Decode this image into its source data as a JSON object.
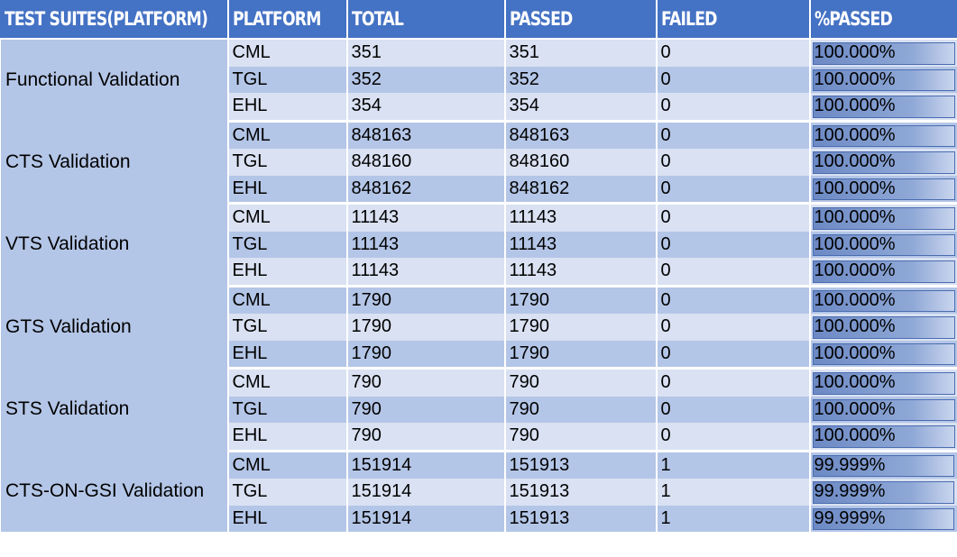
{
  "headers": [
    "TEST SUITES(PLATFORM)",
    "PLATFORM",
    "TOTAL",
    "PASSED",
    "FAILED",
    "%PASSED"
  ],
  "groups": [
    {
      "suite": "Functional Validation",
      "rows": [
        {
          "platform": "CML",
          "total": "351",
          "passed": "351",
          "failed": "0",
          "pct": "100.000%",
          "pct_value": 100
        },
        {
          "platform": "TGL",
          "total": "352",
          "passed": "352",
          "failed": "0",
          "pct": "100.000%",
          "pct_value": 100
        },
        {
          "platform": "EHL",
          "total": "354",
          "passed": "354",
          "failed": "0",
          "pct": "100.000%",
          "pct_value": 100
        }
      ]
    },
    {
      "suite": "CTS Validation",
      "rows": [
        {
          "platform": "CML",
          "total": "848163",
          "passed": "848163",
          "failed": "0",
          "pct": "100.000%",
          "pct_value": 100
        },
        {
          "platform": "TGL",
          "total": "848160",
          "passed": "848160",
          "failed": "0",
          "pct": "100.000%",
          "pct_value": 100
        },
        {
          "platform": "EHL",
          "total": "848162",
          "passed": "848162",
          "failed": "0",
          "pct": "100.000%",
          "pct_value": 100
        }
      ]
    },
    {
      "suite": "VTS Validation",
      "rows": [
        {
          "platform": "CML",
          "total": "11143",
          "passed": "11143",
          "failed": "0",
          "pct": "100.000%",
          "pct_value": 100
        },
        {
          "platform": "TGL",
          "total": "11143",
          "passed": "11143",
          "failed": "0",
          "pct": "100.000%",
          "pct_value": 100
        },
        {
          "platform": "EHL",
          "total": "11143",
          "passed": "11143",
          "failed": "0",
          "pct": "100.000%",
          "pct_value": 100
        }
      ]
    },
    {
      "suite": "GTS Validation",
      "rows": [
        {
          "platform": "CML",
          "total": "1790",
          "passed": "1790",
          "failed": "0",
          "pct": "100.000%",
          "pct_value": 100
        },
        {
          "platform": "TGL",
          "total": "1790",
          "passed": "1790",
          "failed": "0",
          "pct": "100.000%",
          "pct_value": 100
        },
        {
          "platform": "EHL",
          "total": "1790",
          "passed": "1790",
          "failed": "0",
          "pct": "100.000%",
          "pct_value": 100
        }
      ]
    },
    {
      "suite": "STS Validation",
      "rows": [
        {
          "platform": "CML",
          "total": "790",
          "passed": "790",
          "failed": "0",
          "pct": "100.000%",
          "pct_value": 100
        },
        {
          "platform": "TGL",
          "total": "790",
          "passed": "790",
          "failed": "0",
          "pct": "100.000%",
          "pct_value": 100
        },
        {
          "platform": "EHL",
          "total": "790",
          "passed": "790",
          "failed": "0",
          "pct": "100.000%",
          "pct_value": 100
        }
      ]
    },
    {
      "suite": "CTS-ON-GSI Validation",
      "rows": [
        {
          "platform": "CML",
          "total": "151914",
          "passed": "151913",
          "failed": "1",
          "pct": "99.999%",
          "pct_value": 99.999
        },
        {
          "platform": "TGL",
          "total": "151914",
          "passed": "151913",
          "failed": "1",
          "pct": "99.999%",
          "pct_value": 99.999
        },
        {
          "platform": "EHL",
          "total": "151914",
          "passed": "151913",
          "failed": "1",
          "pct": "99.999%",
          "pct_value": 99.999
        }
      ]
    }
  ],
  "colors": {
    "header_bg": "#4472c4",
    "row_dark": "#b4c6e7",
    "row_light": "#d9e1f2",
    "bar": "#6c89c4"
  }
}
